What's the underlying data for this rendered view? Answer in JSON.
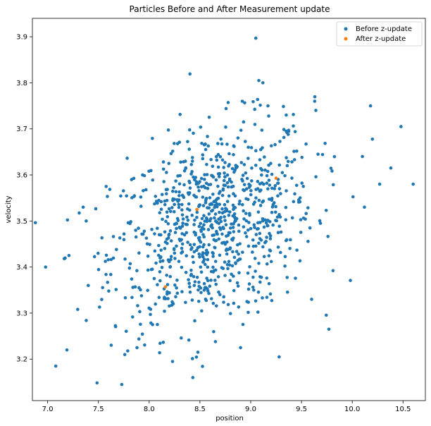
{
  "chart_data": {
    "type": "scatter",
    "title": "Particles Before and After Measurement update",
    "xlabel": "position",
    "ylabel": "velocity",
    "xlim": [
      6.85,
      10.72
    ],
    "ylim": [
      3.11,
      3.94
    ],
    "xticks": [
      "7.0",
      "7.5",
      "8.0",
      "8.5",
      "9.0",
      "9.5",
      "10.0",
      "10.5"
    ],
    "yticks": [
      "3.2",
      "3.3",
      "3.4",
      "3.5",
      "3.6",
      "3.7",
      "3.8",
      "3.9"
    ],
    "grid": false,
    "legend_position": "top-right",
    "colors": {
      "before": "#1f77b4",
      "after": "#ff7f0e"
    },
    "series": [
      {
        "name": "Before z-update",
        "marker": "dot",
        "color": "#1f77b4",
        "generated_cloud": {
          "count": 900,
          "mean": [
            8.62,
            3.49
          ],
          "std": [
            0.5,
            0.11
          ],
          "correlation": 0.3
        },
        "points": [
          [
            6.98,
            3.4
          ],
          [
            7.08,
            3.185
          ],
          [
            7.19,
            3.22
          ],
          [
            7.21,
            3.425
          ],
          [
            7.35,
            3.53
          ],
          [
            7.38,
            3.5
          ],
          [
            7.4,
            3.36
          ],
          [
            7.73,
            3.145
          ],
          [
            7.76,
            3.21
          ],
          [
            8.43,
            3.16
          ],
          [
            9.05,
            3.897
          ],
          [
            9.08,
            3.805
          ],
          [
            9.12,
            3.8
          ],
          [
            9.17,
            3.75
          ],
          [
            9.35,
            3.73
          ],
          [
            9.63,
            3.76
          ],
          [
            10.18,
            3.75
          ],
          [
            10.48,
            3.705
          ],
          [
            10.38,
            3.615
          ],
          [
            10.6,
            3.58
          ],
          [
            10.1,
            3.64
          ],
          [
            10.27,
            3.58
          ],
          [
            10.12,
            3.53
          ],
          [
            9.77,
            3.265
          ],
          [
            9.28,
            3.205
          ],
          [
            8.9,
            3.225
          ],
          [
            8.23,
            3.195
          ],
          [
            8.48,
            3.215
          ],
          [
            7.88,
            3.225
          ],
          [
            9.6,
            3.33
          ]
        ]
      },
      {
        "name": "After z-update",
        "marker": "dot",
        "color": "#ff7f0e",
        "points": [
          [
            8.16,
            3.357
          ],
          [
            8.47,
            3.525
          ],
          [
            9.25,
            3.593
          ]
        ]
      }
    ]
  }
}
